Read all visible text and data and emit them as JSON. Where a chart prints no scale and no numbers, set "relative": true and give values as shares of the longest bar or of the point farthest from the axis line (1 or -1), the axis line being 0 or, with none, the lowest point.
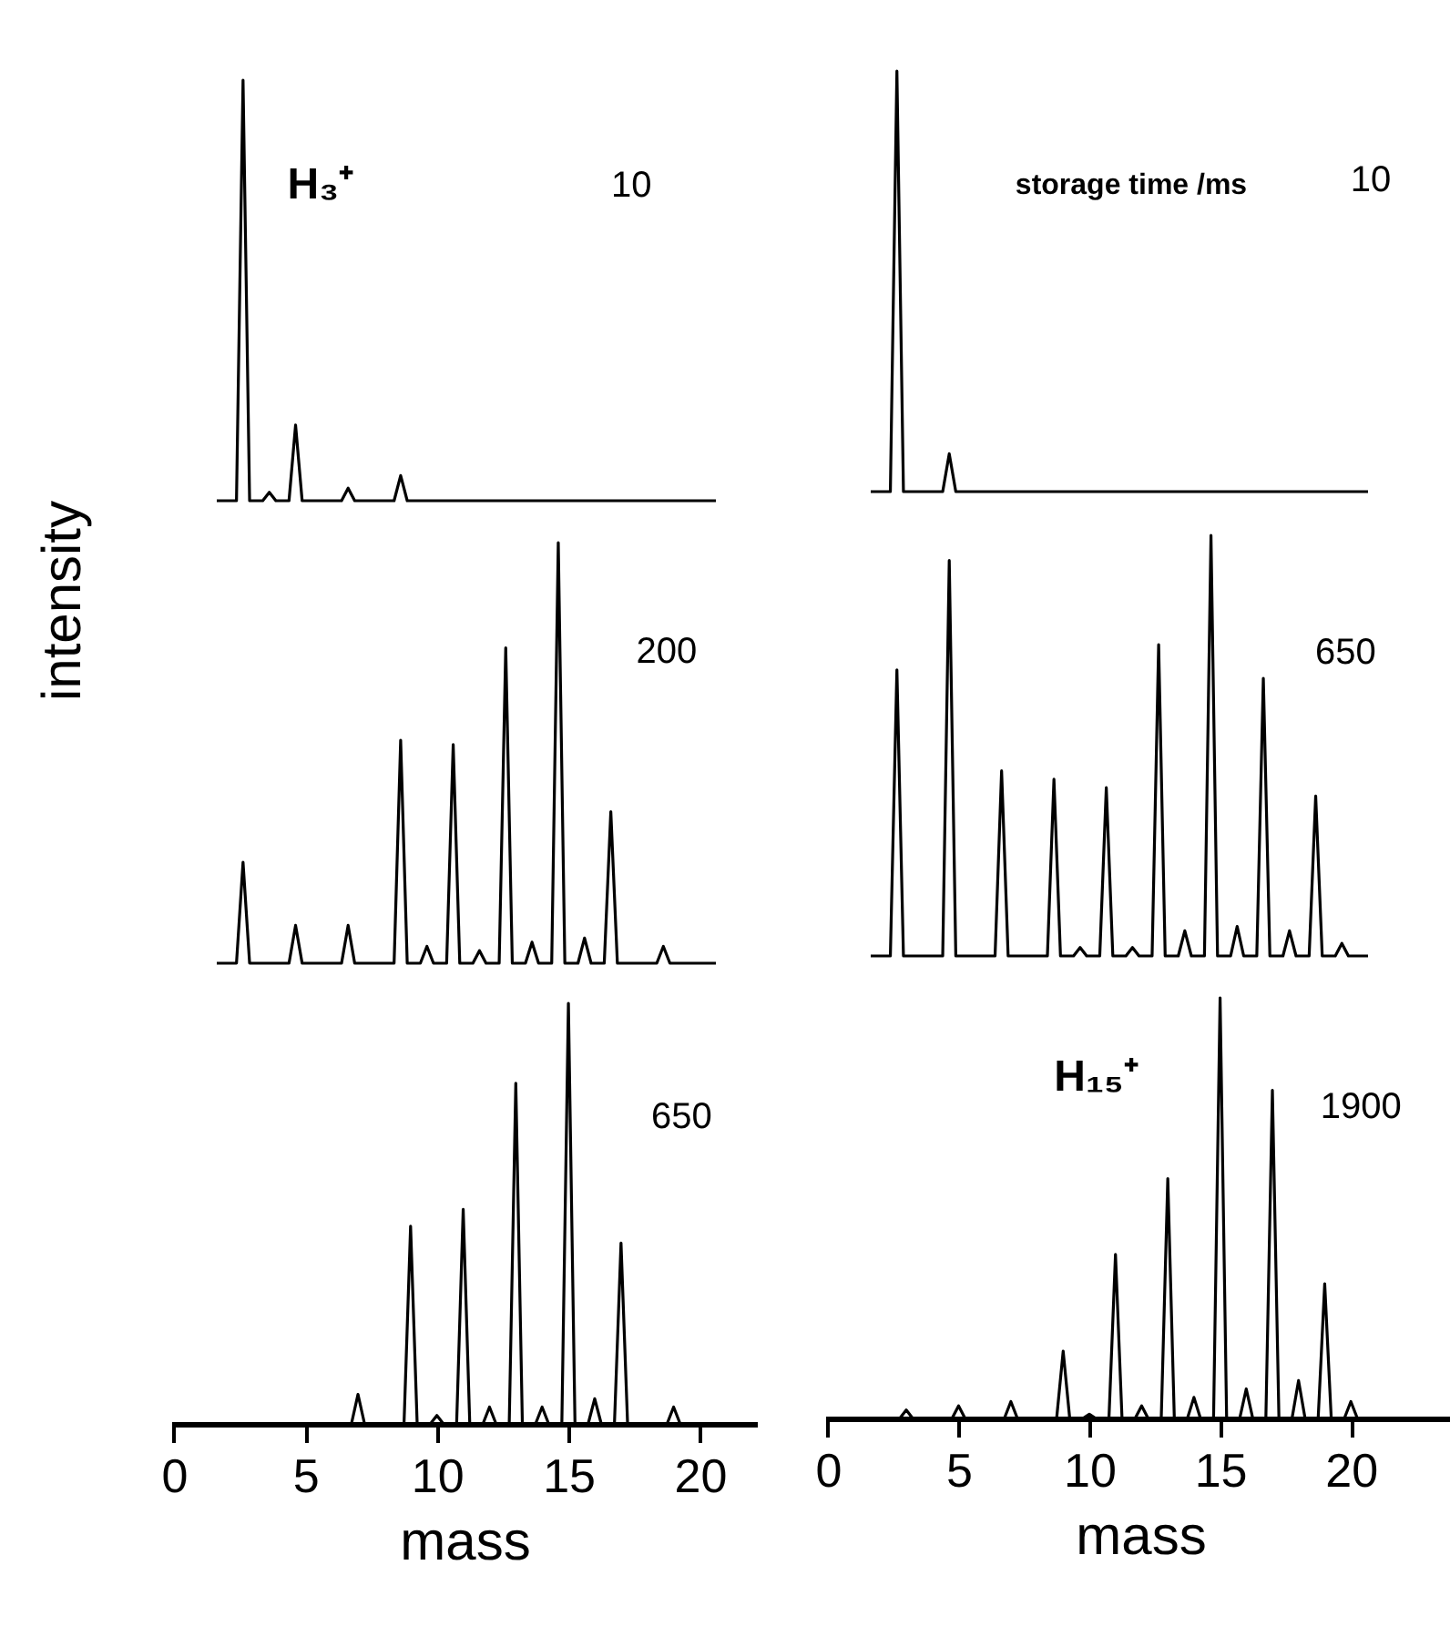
{
  "chart_data": [
    {
      "type": "line",
      "color": "#000000",
      "relative": true,
      "tick_labels": false,
      "annotations": [
        "H₃⁺",
        "10"
      ],
      "categories": [
        null,
        null,
        null,
        null,
        null,
        null,
        null,
        null,
        null,
        null,
        null,
        null,
        null,
        null,
        null,
        null,
        null,
        null,
        null,
        null,
        null,
        null,
        null,
        null,
        null,
        null,
        null,
        null,
        null,
        null,
        null,
        null,
        null,
        null,
        null,
        null,
        null,
        null,
        null,
        null,
        null,
        null,
        null,
        null,
        null,
        null,
        null,
        null,
        null,
        null,
        null,
        null,
        null,
        null,
        null,
        null,
        null,
        null,
        null,
        null,
        null,
        null,
        null,
        null,
        null,
        null,
        null,
        null,
        null,
        null,
        null,
        null,
        null,
        null,
        null,
        null,
        null
      ],
      "values": [
        0,
        0,
        0,
        0,
        1,
        0,
        0,
        0,
        0.02,
        0,
        0,
        0,
        0.18,
        0,
        0,
        0,
        0,
        0,
        0,
        0,
        0.03,
        0,
        0,
        0,
        0,
        0,
        0,
        0,
        0.06,
        0,
        0,
        0,
        0,
        0,
        0,
        0,
        0,
        0,
        0,
        0,
        0,
        0,
        0,
        0,
        0,
        0,
        0,
        0,
        0,
        0,
        0,
        0,
        0,
        0,
        0,
        0,
        0,
        0,
        0,
        0,
        0,
        0,
        0,
        0,
        0,
        0,
        0,
        0,
        0,
        0,
        0,
        0,
        0,
        0,
        0,
        0,
        0
      ]
    },
    {
      "type": "line",
      "color": "#000000",
      "relative": true,
      "tick_labels": false,
      "annotations": [
        "storage time /ms",
        "10"
      ],
      "categories": [
        null,
        null,
        null,
        null,
        null,
        null,
        null,
        null,
        null,
        null,
        null,
        null,
        null,
        null,
        null,
        null,
        null,
        null,
        null,
        null,
        null,
        null,
        null,
        null,
        null,
        null,
        null,
        null,
        null,
        null,
        null,
        null,
        null,
        null,
        null,
        null,
        null,
        null,
        null,
        null,
        null,
        null,
        null,
        null,
        null,
        null,
        null,
        null,
        null,
        null,
        null,
        null,
        null,
        null,
        null,
        null,
        null,
        null,
        null,
        null,
        null,
        null,
        null,
        null,
        null,
        null,
        null,
        null,
        null,
        null,
        null,
        null,
        null,
        null,
        null,
        null,
        null
      ],
      "values": [
        0,
        0,
        0,
        0,
        1,
        0,
        0,
        0,
        0,
        0,
        0,
        0,
        0.09,
        0,
        0,
        0,
        0,
        0,
        0,
        0,
        0,
        0,
        0,
        0,
        0,
        0,
        0,
        0,
        0,
        0,
        0,
        0,
        0,
        0,
        0,
        0,
        0,
        0,
        0,
        0,
        0,
        0,
        0,
        0,
        0,
        0,
        0,
        0,
        0,
        0,
        0,
        0,
        0,
        0,
        0,
        0,
        0,
        0,
        0,
        0,
        0,
        0,
        0,
        0,
        0,
        0,
        0,
        0,
        0,
        0,
        0,
        0,
        0,
        0,
        0,
        0,
        0
      ]
    },
    {
      "type": "line",
      "color": "#000000",
      "relative": true,
      "ylabel": "intensity",
      "tick_labels": false,
      "annotations": [
        "200"
      ],
      "categories": [
        null,
        null,
        null,
        null,
        null,
        null,
        null,
        null,
        null,
        null,
        null,
        null,
        null,
        null,
        null,
        null,
        null,
        null,
        null,
        null,
        null,
        null,
        null,
        null,
        null,
        null,
        null,
        null,
        null,
        null,
        null,
        null,
        null,
        null,
        null,
        null,
        null,
        null,
        null,
        null,
        null,
        null,
        null,
        null,
        null,
        null,
        null,
        null,
        null,
        null,
        null,
        null,
        null,
        null,
        null,
        null,
        null,
        null,
        null,
        null,
        null,
        null,
        null,
        null,
        null,
        null,
        null,
        null,
        null,
        null,
        null,
        null,
        null,
        null,
        null,
        null,
        null
      ],
      "values": [
        0,
        0,
        0,
        0,
        0.24,
        0,
        0,
        0,
        0,
        0,
        0,
        0,
        0.09,
        0,
        0,
        0,
        0,
        0,
        0,
        0,
        0.09,
        0,
        0,
        0,
        0,
        0,
        0,
        0,
        0.53,
        0,
        0,
        0,
        0.04,
        0,
        0,
        0,
        0.52,
        0,
        0,
        0,
        0.03,
        0,
        0,
        0,
        0.75,
        0,
        0,
        0,
        0.05,
        0,
        0,
        0,
        1,
        0,
        0,
        0,
        0.06,
        0,
        0,
        0,
        0.36,
        0,
        0,
        0,
        0,
        0,
        0,
        0,
        0.04,
        0,
        0,
        0,
        0,
        0,
        0,
        0,
        0
      ]
    },
    {
      "type": "line",
      "color": "#000000",
      "relative": true,
      "tick_labels": false,
      "annotations": [
        "650"
      ],
      "categories": [
        null,
        null,
        null,
        null,
        null,
        null,
        null,
        null,
        null,
        null,
        null,
        null,
        null,
        null,
        null,
        null,
        null,
        null,
        null,
        null,
        null,
        null,
        null,
        null,
        null,
        null,
        null,
        null,
        null,
        null,
        null,
        null,
        null,
        null,
        null,
        null,
        null,
        null,
        null,
        null,
        null,
        null,
        null,
        null,
        null,
        null,
        null,
        null,
        null,
        null,
        null,
        null,
        null,
        null,
        null,
        null,
        null,
        null,
        null,
        null,
        null,
        null,
        null,
        null,
        null,
        null,
        null,
        null,
        null,
        null,
        null,
        null,
        null,
        null,
        null,
        null,
        null
      ],
      "values": [
        0,
        0,
        0,
        0,
        0.68,
        0,
        0,
        0,
        0,
        0,
        0,
        0,
        0.94,
        0,
        0,
        0,
        0,
        0,
        0,
        0,
        0.44,
        0,
        0,
        0,
        0,
        0,
        0,
        0,
        0.42,
        0,
        0,
        0,
        0.02,
        0,
        0,
        0,
        0.4,
        0,
        0,
        0,
        0.02,
        0,
        0,
        0,
        0.74,
        0,
        0,
        0,
        0.06,
        0,
        0,
        0,
        1,
        0,
        0,
        0,
        0.07,
        0,
        0,
        0,
        0.66,
        0,
        0,
        0,
        0.06,
        0,
        0,
        0,
        0.38,
        0,
        0,
        0,
        0.03,
        0,
        0,
        0,
        0
      ]
    },
    {
      "type": "line",
      "color": "#000000",
      "relative": true,
      "xlabel": "mass",
      "xlim": [
        -0.1,
        22.2
      ],
      "xticks": [
        0,
        5,
        10,
        15,
        20
      ],
      "tick_labels": "x",
      "annotations": [
        "650"
      ],
      "x": [
        2,
        2.75,
        3,
        3.25,
        3.75,
        4,
        4.25,
        4.75,
        5,
        5.25,
        5.75,
        6,
        6.25,
        6.75,
        7,
        7.25,
        7.75,
        8,
        8.25,
        8.75,
        9,
        9.25,
        9.75,
        10,
        10.25,
        10.75,
        11,
        11.25,
        11.75,
        12,
        12.25,
        12.75,
        13,
        13.25,
        13.75,
        14,
        14.25,
        14.75,
        15,
        15.25,
        15.75,
        16,
        16.25,
        16.75,
        17,
        17.25,
        17.75,
        18,
        18.25,
        18.75,
        19,
        19.25,
        19.75,
        20,
        20.25,
        21
      ],
      "values": [
        0,
        0,
        0,
        0,
        0,
        0,
        0,
        0,
        0,
        0,
        0,
        0,
        0,
        0,
        0.07,
        0,
        0,
        0,
        0,
        0,
        0.47,
        0,
        0,
        0.02,
        0,
        0,
        0.51,
        0,
        0,
        0.04,
        0,
        0,
        0.81,
        0,
        0,
        0.04,
        0,
        0,
        1,
        0,
        0,
        0.06,
        0,
        0,
        0.43,
        0,
        0,
        0,
        0,
        0,
        0.04,
        0,
        0,
        0,
        0,
        0
      ]
    },
    {
      "type": "line",
      "color": "#000000",
      "relative": true,
      "xlabel": "mass",
      "xlim": [
        -0.1,
        24
      ],
      "xticks": [
        0,
        5,
        10,
        15,
        20
      ],
      "tick_labels": "x",
      "annotations": [
        "H₁₅⁺",
        "1900"
      ],
      "x": [
        2,
        2.75,
        3,
        3.25,
        3.75,
        4,
        4.25,
        4.75,
        5,
        5.25,
        5.75,
        6,
        6.25,
        6.75,
        7,
        7.25,
        7.75,
        8,
        8.25,
        8.75,
        9,
        9.25,
        9.75,
        10,
        10.25,
        10.75,
        11,
        11.25,
        11.75,
        12,
        12.25,
        12.75,
        13,
        13.25,
        13.75,
        14,
        14.25,
        14.75,
        15,
        15.25,
        15.75,
        16,
        16.25,
        16.75,
        17,
        17.25,
        17.75,
        18,
        18.25,
        18.75,
        19,
        19.25,
        19.75,
        20,
        20.25,
        24
      ],
      "values": [
        0,
        0,
        0.02,
        0,
        0,
        0,
        0,
        0,
        0.03,
        0,
        0,
        0,
        0,
        0,
        0.04,
        0,
        0,
        0,
        0,
        0,
        0.16,
        0,
        0,
        0.01,
        0,
        0,
        0.39,
        0,
        0,
        0.03,
        0,
        0,
        0.57,
        0,
        0,
        0.05,
        0,
        0,
        1,
        0,
        0,
        0.07,
        0,
        0,
        0.78,
        0,
        0,
        0.09,
        0,
        0,
        0.32,
        0,
        0,
        0.04,
        0,
        0
      ]
    }
  ]
}
